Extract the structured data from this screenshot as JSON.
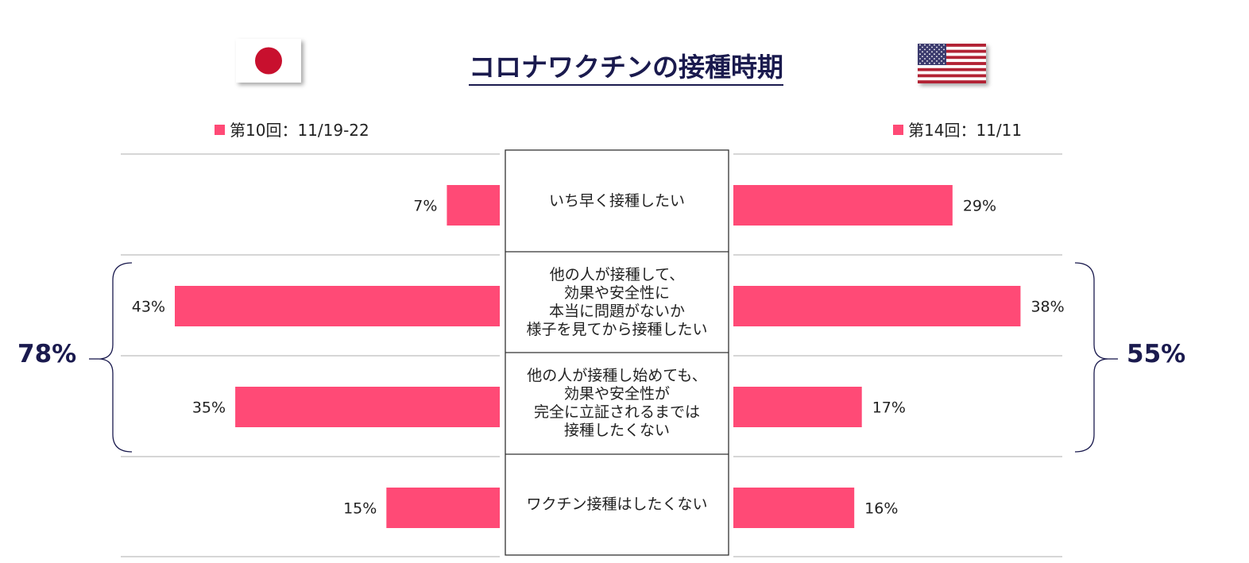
{
  "title": "コロナワクチンの接種時期",
  "colors": {
    "bar": "#ff4a76",
    "accent": "#1a1a4e",
    "grid": "#c8c8c8"
  },
  "flags": {
    "left": "japan-flag",
    "right": "usa-flag"
  },
  "chart_data": {
    "type": "bar",
    "orientation": "horizontal-butterfly",
    "title": "コロナワクチンの接種時期",
    "categories": [
      "いち早く接種したい",
      "他の人が接種して、\n効果や安全性に\n本当に問題がないか\n様子を見てから接種したい",
      "他の人が接種し始めても、\n効果や安全性が\n完全に立証されるまでは\n接種したくない",
      "ワクチン接種はしたくない"
    ],
    "series": [
      {
        "name": "第10回：11/19-22",
        "side": "left",
        "values": [
          7,
          43,
          35,
          15
        ],
        "labels": [
          "7%",
          "43%",
          "35%",
          "15%"
        ]
      },
      {
        "name": "第14回：11/11",
        "side": "right",
        "values": [
          29,
          38,
          17,
          16
        ],
        "labels": [
          "29%",
          "38%",
          "17%",
          "16%"
        ]
      }
    ],
    "group_totals": {
      "left": "78%",
      "right": "55%"
    },
    "xlim": [
      0,
      43
    ],
    "grid": true
  }
}
